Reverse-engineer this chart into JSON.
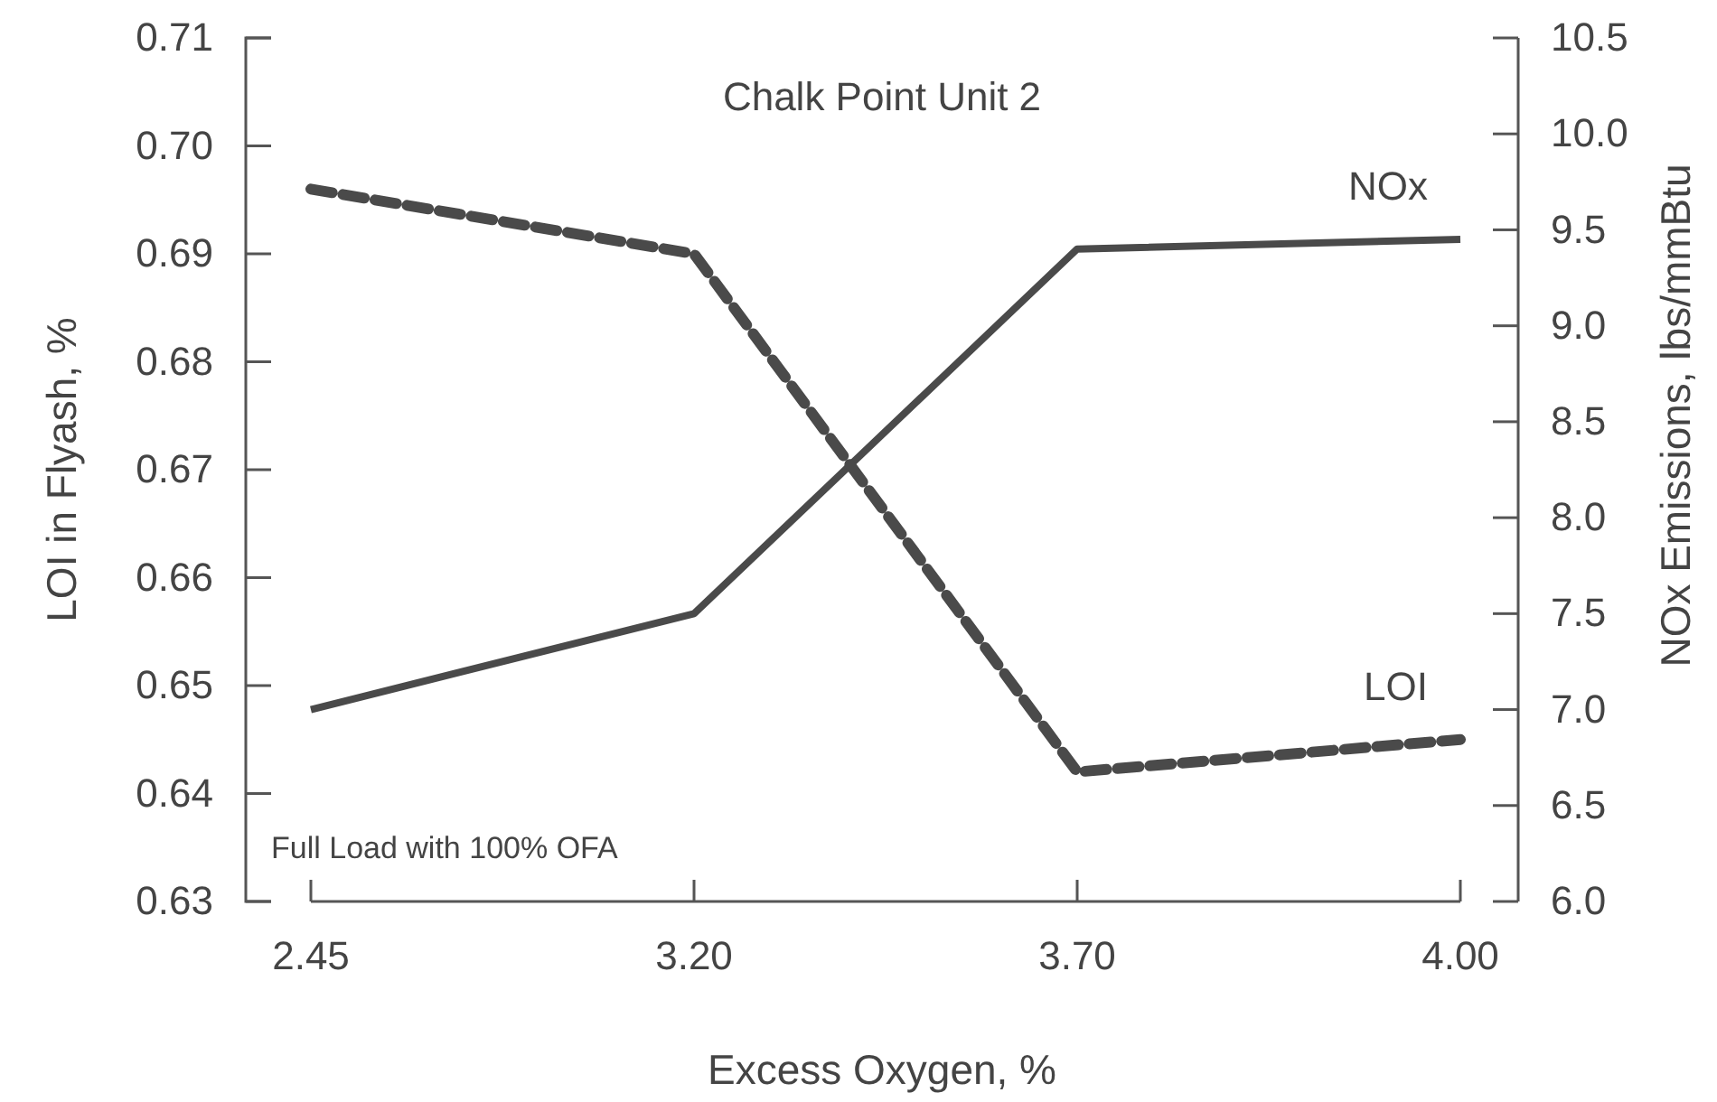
{
  "chart_data": {
    "type": "line",
    "title": "Chalk Point Unit 2",
    "xlabel": "Excess Oxygen, %",
    "ylabel": "LOI in Flyash, %",
    "y2label": "NOx Emissions, lbs/mmBtu",
    "categories": [
      "2.45",
      "3.20",
      "3.70",
      "4.00"
    ],
    "series": [
      {
        "name": "NOx",
        "color": "#4a4a4a",
        "values": [
          7.0,
          7.5,
          9.4,
          9.45
        ],
        "axis": "y2",
        "line_style": "solid"
      },
      {
        "name": "LOI",
        "color": "#4a4a4a",
        "values": [
          0.696,
          0.69,
          0.642,
          0.645
        ],
        "line_style": "dashed"
      }
    ],
    "ylim": [
      0.63,
      0.71
    ],
    "yticks": [
      {
        "value": 0.63,
        "label": "0.63"
      },
      {
        "value": 0.64,
        "label": "0.64"
      },
      {
        "value": 0.65,
        "label": "0.65"
      },
      {
        "value": 0.66,
        "label": "0.66"
      },
      {
        "value": 0.67,
        "label": "0.67"
      },
      {
        "value": 0.68,
        "label": "0.68"
      },
      {
        "value": 0.69,
        "label": "0.69"
      },
      {
        "value": 0.7,
        "label": "0.70"
      },
      {
        "value": 0.71,
        "label": "0.71"
      }
    ],
    "y2lim": [
      6.0,
      10.5
    ],
    "y2ticks": [
      {
        "value": 6,
        "label": "6.0"
      },
      {
        "value": 6.5,
        "label": "6.5"
      },
      {
        "value": 7,
        "label": "7.0"
      },
      {
        "value": 7.5,
        "label": "7.5"
      },
      {
        "value": 8,
        "label": "8.0"
      },
      {
        "value": 8.5,
        "label": "8.5"
      },
      {
        "value": 9,
        "label": "9.0"
      },
      {
        "value": 9.5,
        "label": "9.5"
      },
      {
        "value": 10,
        "label": "10.0"
      },
      {
        "value": 10.5,
        "label": "10.5"
      }
    ],
    "annotations": [
      "Full Load with 100% OFA"
    ],
    "grid": false,
    "legend": false,
    "marker": "none"
  }
}
